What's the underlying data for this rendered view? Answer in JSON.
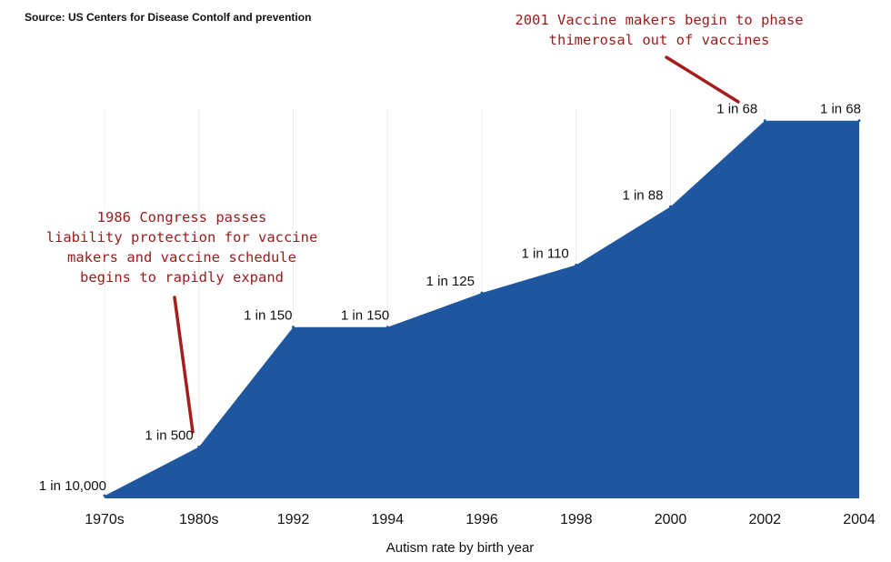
{
  "source": "Source: US Centers for Disease Contolf and prevention",
  "colors": {
    "area": "#1e56a0",
    "annotation": "#9b1b1b",
    "annotation_line": "#a51d1d",
    "grid": "#ececec",
    "text": "#111111"
  },
  "annotations": [
    {
      "id": "ann-1986",
      "text": "1986 Congress passes\nliability protection for vaccine\nmakers and vaccine schedule\nbegins to rapidly expand",
      "points_to": "1980s"
    },
    {
      "id": "ann-2001",
      "text": "2001 Vaccine makers begin to phase\nthimerosal out of vaccines",
      "points_to": "2002"
    }
  ],
  "chart_data": {
    "type": "area",
    "title": "",
    "xlabel": "Autism rate by birth year",
    "ylabel": "",
    "grid": "vertical",
    "legend": "none",
    "categories": [
      "1970s",
      "1980s",
      "1992",
      "1994",
      "1996",
      "1998",
      "2000",
      "2002",
      "2004"
    ],
    "labels": [
      "1 in 10,000",
      "1 in 500",
      "1 in 150",
      "1 in 150",
      "1 in 125",
      "1 in 110",
      "1 in 88",
      "1 in 68",
      "1 in 68"
    ],
    "values": [
      0.0001,
      0.002,
      0.00667,
      0.00667,
      0.008,
      0.00909,
      0.01136,
      0.01471,
      0.01471
    ],
    "ylim": [
      0,
      0.0147
    ]
  }
}
